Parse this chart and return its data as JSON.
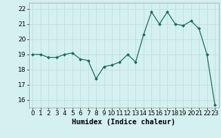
{
  "x": [
    0,
    1,
    2,
    3,
    4,
    5,
    6,
    7,
    8,
    9,
    10,
    11,
    12,
    13,
    14,
    15,
    16,
    17,
    18,
    19,
    20,
    21,
    22,
    23
  ],
  "y": [
    19.0,
    19.0,
    18.8,
    18.8,
    19.0,
    19.1,
    18.7,
    18.6,
    17.4,
    18.2,
    18.3,
    18.5,
    19.0,
    18.5,
    20.3,
    21.8,
    21.0,
    21.8,
    21.0,
    20.9,
    21.2,
    20.7,
    19.0,
    15.7
  ],
  "xlabel": "Humidex (Indice chaleur)",
  "ylim": [
    15.5,
    22.4
  ],
  "xlim": [
    -0.5,
    23.5
  ],
  "yticks": [
    16,
    17,
    18,
    19,
    20,
    21,
    22
  ],
  "xticks": [
    0,
    1,
    2,
    3,
    4,
    5,
    6,
    7,
    8,
    9,
    10,
    11,
    12,
    13,
    14,
    15,
    16,
    17,
    18,
    19,
    20,
    21,
    22,
    23
  ],
  "line_color": "#1a6b5a",
  "marker_color": "#1a6b5a",
  "bg_color": "#d4f0f0",
  "grid_color": "#c0dede",
  "tick_label_fontsize": 6.5,
  "xlabel_fontsize": 7.5
}
